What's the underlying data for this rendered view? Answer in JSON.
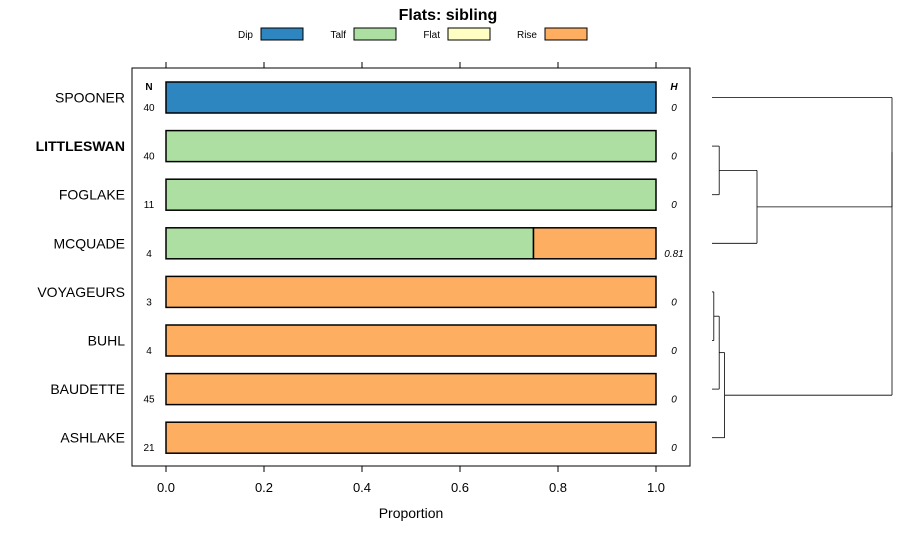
{
  "chart_data": {
    "type": "bar",
    "orientation": "horizontal",
    "stacked": true,
    "title": "Flats: sibling",
    "xlabel": "Proportion",
    "ylabel": "",
    "xlim": [
      -0.07,
      1.07
    ],
    "xticks": [
      0.0,
      0.2,
      0.4,
      0.6,
      0.8,
      1.0
    ],
    "xtick_labels": [
      "0.0",
      "0.2",
      "0.4",
      "0.6",
      "0.8",
      "1.0"
    ],
    "legend_position": "top",
    "legend": [
      {
        "name": "Dip",
        "color": "#2e86c1"
      },
      {
        "name": "Talf",
        "color": "#addfa2"
      },
      {
        "name": "Flat",
        "color": "#ffffc4"
      },
      {
        "name": "Rise",
        "color": "#fdae61"
      }
    ],
    "column_headers": {
      "n": "N",
      "h": "H"
    },
    "categories": [
      "SPOONER",
      "LITTLESWAN",
      "FOGLAKE",
      "MCQUADE",
      "VOYAGEURS",
      "BUHL",
      "BAUDETTE",
      "ASHLAKE"
    ],
    "highlighted": [
      "LITTLESWAN"
    ],
    "n_values": [
      "40",
      "40",
      "11",
      "4",
      "3",
      "4",
      "45",
      "21"
    ],
    "h_values": [
      "0",
      "0",
      "0",
      "0.81",
      "0",
      "0",
      "0",
      "0"
    ],
    "series": [
      {
        "name": "Dip",
        "values": [
          1.0,
          0,
          0,
          0,
          0,
          0,
          0,
          0
        ]
      },
      {
        "name": "Talf",
        "values": [
          0,
          1.0,
          1.0,
          0.75,
          0,
          0,
          0,
          0
        ]
      },
      {
        "name": "Flat",
        "values": [
          0,
          0,
          0,
          0,
          0,
          0,
          0,
          0
        ]
      },
      {
        "name": "Rise",
        "values": [
          0,
          0,
          0,
          0.25,
          1.0,
          1.0,
          1.0,
          1.0
        ]
      }
    ],
    "dendrogram": {
      "type": "hierarchical-clustering",
      "merge_heights": {
        "LITTLESWAN+FOGLAKE": 0.04,
        "VOYAGEURS+BUHL": 0.01,
        "VB+BAUDETTE": 0.04,
        "VBB+ASHLAKE": 0.07,
        "LF+MCQUADE": 0.25,
        "SPOONER+LFM": 1.0,
        "ROOT": 1.0
      }
    }
  }
}
